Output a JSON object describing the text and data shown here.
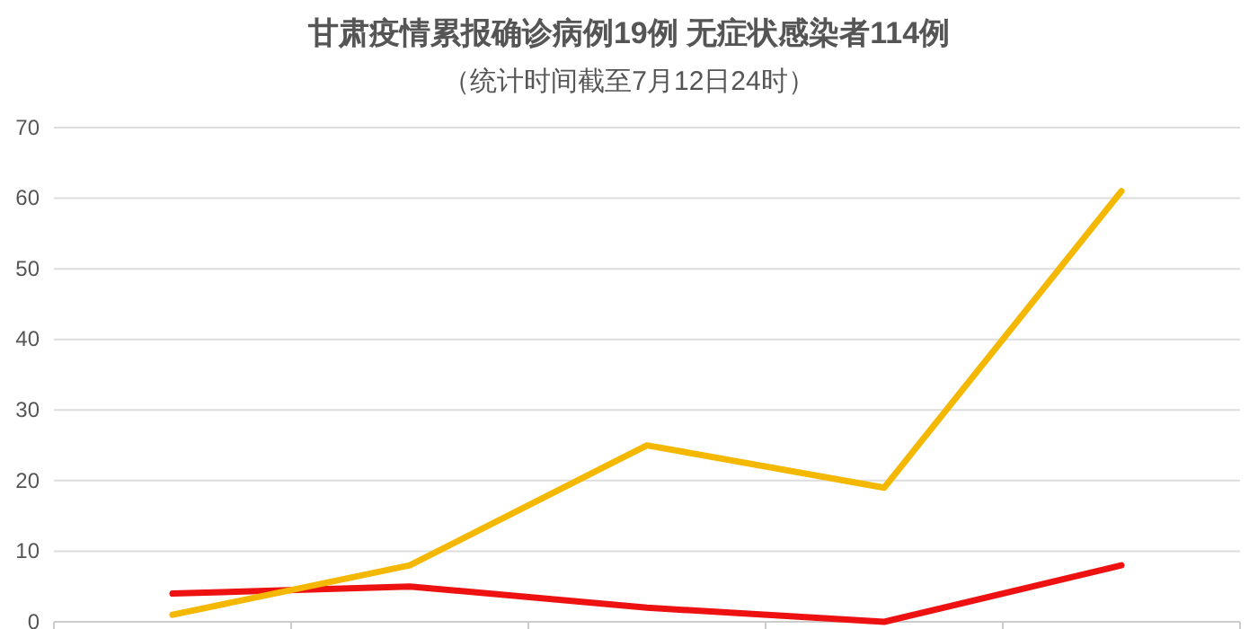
{
  "chart_data": {
    "type": "line",
    "title": "甘肃疫情累报确诊病例19例 无症状感染者114例",
    "subtitle": "（统计时间截至7月12日24时）",
    "categories": [
      null,
      null,
      null,
      null,
      null
    ],
    "series": [
      {
        "color": "#ee1111",
        "values": [
          4,
          5,
          2,
          0,
          8
        ]
      },
      {
        "color": "#f5b800",
        "values": [
          1,
          8,
          25,
          19,
          61
        ]
      }
    ],
    "ylim": [
      0,
      70
    ],
    "yticks": [
      0,
      10,
      20,
      30,
      40,
      50,
      60,
      70
    ],
    "grid": "y",
    "marker": "none",
    "line_style": "solid"
  }
}
